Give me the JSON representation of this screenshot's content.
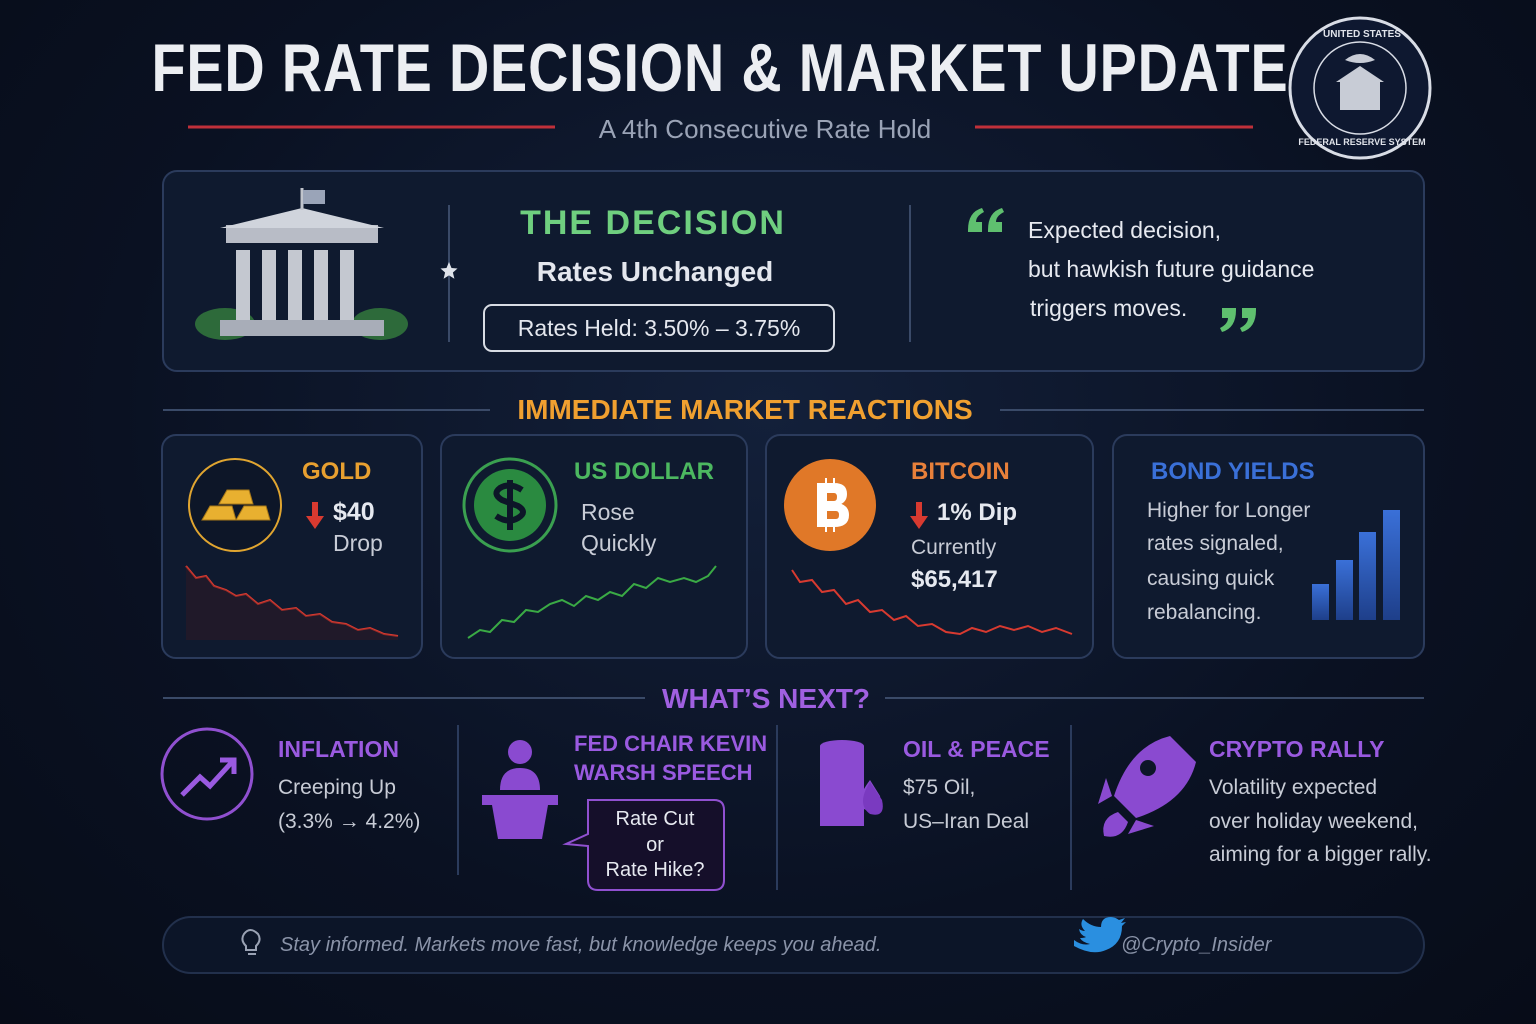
{
  "header": {
    "title": "FED RATE DECISION & MARKET UPDATE",
    "subtitle": "A 4th Consecutive Rate Hold",
    "seal_top": "UNITED STATES",
    "seal_bottom": "FEDERAL RESERVE SYSTEM"
  },
  "decision": {
    "heading": "THE DECISION",
    "status": "Rates Unchanged",
    "range": "Rates Held: 3.50% – 3.75%",
    "quote": [
      "Expected decision,",
      "but hawkish future guidance",
      "triggers moves."
    ]
  },
  "reactions": {
    "heading": "IMMEDIATE MARKET REACTIONS",
    "cards": [
      {
        "title": "GOLD",
        "lines": [
          "$40",
          "Drop"
        ]
      },
      {
        "title": "US DOLLAR",
        "lines": [
          "Rose",
          "Quickly"
        ]
      },
      {
        "title": "BITCOIN",
        "lines": [
          "1% Dip",
          "Currently",
          "$65,417"
        ]
      },
      {
        "title": "BOND YIELDS",
        "lines": [
          "Higher for Longer",
          "rates signaled,",
          "causing quick",
          "rebalancing."
        ]
      }
    ]
  },
  "next": {
    "heading": "WHAT’S NEXT?",
    "items": [
      {
        "title": [
          "INFLATION"
        ],
        "lines": [
          "Creeping Up",
          "(3.3% → 4.2%)"
        ]
      },
      {
        "title": [
          "FED CHAIR KEVIN",
          "WARSH SPEECH"
        ],
        "bubble": [
          "Rate Cut",
          "or",
          "Rate Hike?"
        ]
      },
      {
        "title": [
          "OIL & PEACE"
        ],
        "lines": [
          "$75 Oil,",
          "US–Iran Deal"
        ]
      },
      {
        "title": [
          "CRYPTO RALLY"
        ],
        "lines": [
          "Volatility expected",
          "over holiday weekend,",
          "aiming for a bigger rally."
        ]
      }
    ]
  },
  "footer": {
    "tagline": "Stay informed. Markets move fast, but knowledge keeps you ahead.",
    "handle": "@Crypto_Insider"
  }
}
